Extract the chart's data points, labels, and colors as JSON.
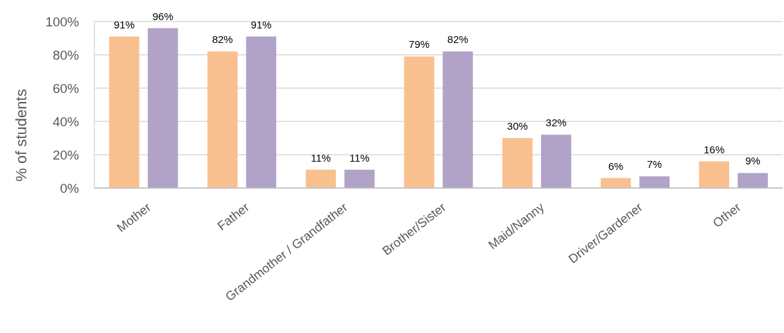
{
  "chart_data": {
    "type": "bar",
    "ylabel": "% of students",
    "categories": [
      "Mother",
      "Father",
      "Grandmother / Grandfather",
      "Brother/Sister",
      "Maid/Nanny",
      "Driver/Gardener",
      "Other"
    ],
    "series": [
      {
        "color": "#f9c08f",
        "values": [
          91,
          82,
          11,
          79,
          30,
          6,
          16
        ],
        "value_labels": [
          "91%",
          "82%",
          "11%",
          "79%",
          "30%",
          "6%",
          "16%"
        ]
      },
      {
        "color": "#b1a2c8",
        "values": [
          96,
          91,
          11,
          82,
          32,
          7,
          9
        ],
        "value_labels": [
          "96%",
          "91%",
          "11%",
          "82%",
          "32%",
          "7%",
          "9%"
        ]
      }
    ],
    "ylim": [
      0,
      100
    ],
    "yticks": [
      {
        "value": 0,
        "label": "0%"
      },
      {
        "value": 20,
        "label": "20%"
      },
      {
        "value": 40,
        "label": "40%"
      },
      {
        "value": 60,
        "label": "60%"
      },
      {
        "value": 80,
        "label": "80%"
      },
      {
        "value": 100,
        "label": "100%"
      }
    ],
    "grid": "y"
  }
}
